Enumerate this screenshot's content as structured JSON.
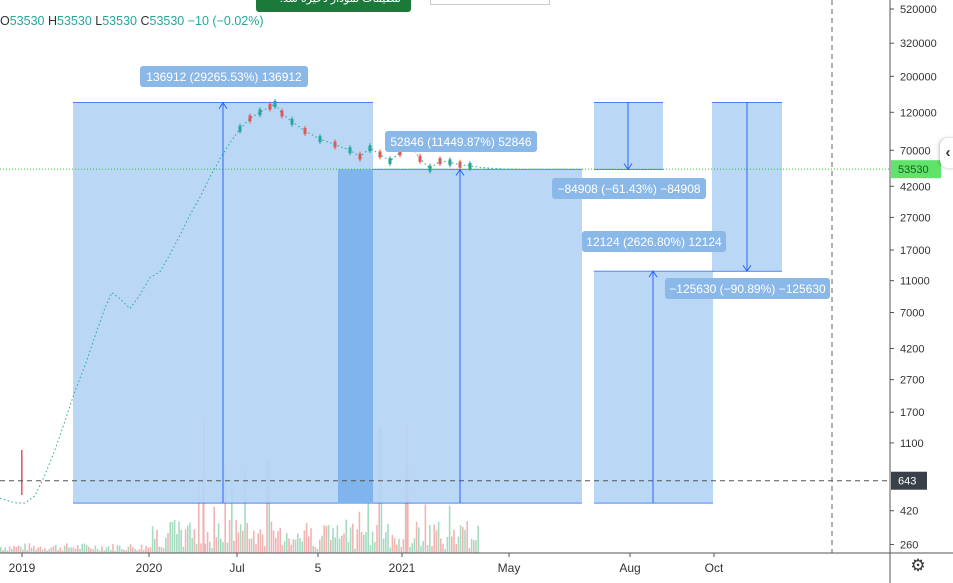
{
  "header": {
    "ohlc": {
      "o": "53530",
      "h": "53530",
      "l": "53530",
      "c": "53530",
      "change": "−10 (−0.02%)"
    },
    "o_label": "O",
    "h_label": "H",
    "l_label": "L",
    "c_label": "C",
    "toast": "تنظیمات نمودار ذخیره شد."
  },
  "chart_data": {
    "type": "line",
    "y_scale": "log",
    "ylim": [
      200,
      520000
    ],
    "y_ticks": [
      520000,
      320000,
      200000,
      120000,
      70000,
      42000,
      27000,
      17000,
      11000,
      7000,
      4200,
      2700,
      1700,
      1100,
      643,
      420,
      260
    ],
    "x_ticks": [
      "2019",
      "2020",
      "Jul",
      "5",
      "2021",
      "May",
      "Aug",
      "Oct"
    ],
    "last_price": 53530,
    "last_price_label": "53530",
    "reference_price": 643,
    "reference_price_label": "643",
    "colors": {
      "measure_fill": "#b3d4f5",
      "measure_fill_dark": "#7fb5ec",
      "measure_stroke": "#2962ff",
      "label_bg": "#8ab8e8",
      "price_line": "#2fbd2f",
      "up": "#26a69a",
      "down": "#ef5350"
    },
    "measurements": [
      {
        "label": "136912 (29265.53%) 136912",
        "from": 468,
        "to": 137380,
        "direction": "up"
      },
      {
        "label": "52846 (11449.87%) 52846",
        "from": 468,
        "to": 53314,
        "direction": "up"
      },
      {
        "label": "−84908 (−61.43%) −84908",
        "from": 138200,
        "to": 53292,
        "direction": "down"
      },
      {
        "label": "12124 (2626.80%) 12124",
        "from": 468,
        "to": 12592,
        "direction": "up"
      },
      {
        "label": "−125630 (−90.89%) −125630",
        "from": 138200,
        "to": 12570,
        "direction": "down"
      }
    ]
  }
}
